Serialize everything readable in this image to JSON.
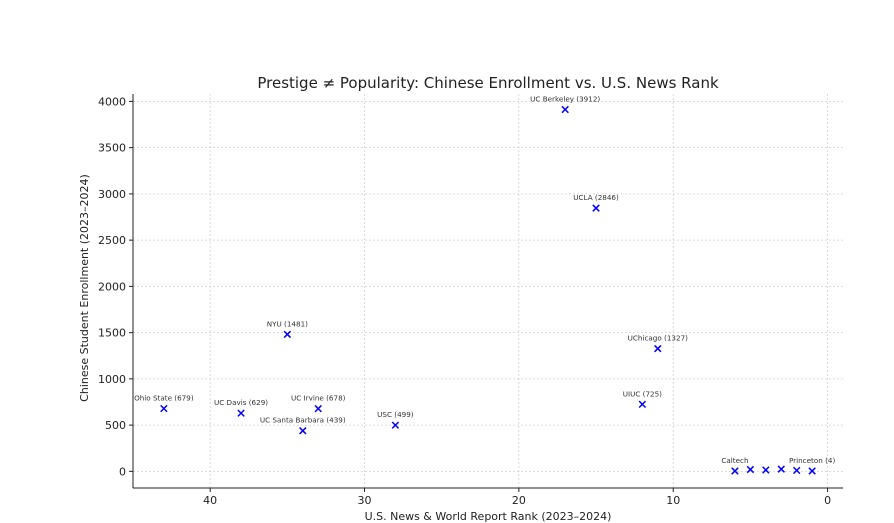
{
  "chart_data": {
    "type": "scatter",
    "title": "Prestige ≠ Popularity: Chinese Enrollment vs. U.S. News Rank",
    "xlabel": "U.S. News & World Report Rank (2023–2024)",
    "ylabel": "Chinese Student Enrollment (2023–2024)",
    "xlim": [
      45,
      -1
    ],
    "ylim": [
      -180,
      4080
    ],
    "x_ticks": [
      40,
      30,
      20,
      10,
      0
    ],
    "y_ticks": [
      0,
      500,
      1000,
      1500,
      2000,
      2500,
      3000,
      3500,
      4000
    ],
    "grid": true,
    "marker": "x",
    "marker_color": "#0000ff",
    "points": [
      {
        "label": "UC Berkeley (3912)",
        "x": 17,
        "y": 3912
      },
      {
        "label": "UCLA (2846)",
        "x": 15,
        "y": 2846
      },
      {
        "label": "NYU (1481)",
        "x": 35,
        "y": 1481
      },
      {
        "label": "UChicago (1327)",
        "x": 11,
        "y": 1327
      },
      {
        "label": "UIUC (725)",
        "x": 12,
        "y": 725
      },
      {
        "label": "Ohio State (679)",
        "x": 43,
        "y": 679
      },
      {
        "label": "UC Irvine (678)",
        "x": 33,
        "y": 678
      },
      {
        "label": "UC Davis (629)",
        "x": 38,
        "y": 629
      },
      {
        "label": "USC (499)",
        "x": 28,
        "y": 499
      },
      {
        "label": "UC Santa Barbara (439)",
        "x": 34,
        "y": 439
      },
      {
        "label": "Caltech",
        "x": 6,
        "y": 4
      },
      {
        "label": "",
        "x": 5,
        "y": 20
      },
      {
        "label": "",
        "x": 4,
        "y": 15
      },
      {
        "label": "",
        "x": 3,
        "y": 24
      },
      {
        "label": "",
        "x": 2,
        "y": 10
      },
      {
        "label": "Princeton (4)",
        "x": 1,
        "y": 4
      }
    ]
  }
}
